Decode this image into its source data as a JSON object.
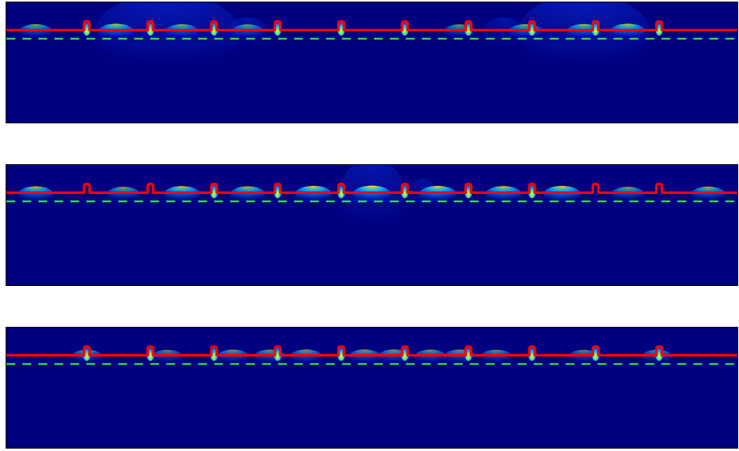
{
  "figure": {
    "colors": {
      "background_field": "#000080",
      "surface_line": "#ff0000",
      "interface_dashed": "#33ff33",
      "hotspot_core": "#ffff00",
      "field_blue": "#0040ff",
      "field_cyan": "#00c0ff",
      "field_yellow": "#ffe000"
    },
    "panels": [
      {
        "id": "mode-1",
        "ridge_count": 10,
        "ridge_positions_frac": [
          0.11,
          0.197,
          0.284,
          0.371,
          0.458,
          0.545,
          0.632,
          0.719,
          0.806,
          0.893
        ],
        "hot_ridges": [
          0,
          1,
          2,
          3,
          4,
          5,
          6,
          7,
          8,
          9
        ],
        "surface_lobes": [
          {
            "x": 0.04,
            "strength": 0.5
          },
          {
            "x": 0.15,
            "strength": 0.7
          },
          {
            "x": 0.24,
            "strength": 0.5
          },
          {
            "x": 0.33,
            "strength": 0.4
          },
          {
            "x": 0.62,
            "strength": 0.4
          },
          {
            "x": 0.71,
            "strength": 0.5
          },
          {
            "x": 0.79,
            "strength": 0.6
          },
          {
            "x": 0.85,
            "strength": 0.7
          }
        ],
        "deep_lobes": [
          {
            "x": 0.22,
            "w": 0.1,
            "h": 50,
            "strength": 0.35
          },
          {
            "x": 0.79,
            "w": 0.09,
            "h": 50,
            "strength": 0.35
          },
          {
            "x": 0.33,
            "w": 0.03,
            "h": 20,
            "strength": 0.25
          },
          {
            "x": 0.68,
            "w": 0.03,
            "h": 20,
            "strength": 0.25
          }
        ]
      },
      {
        "id": "mode-2",
        "ridge_count": 10,
        "ridge_positions_frac": [
          0.11,
          0.197,
          0.284,
          0.371,
          0.458,
          0.545,
          0.632,
          0.719,
          0.806,
          0.893
        ],
        "hot_ridges": [
          2,
          3,
          4,
          5,
          6,
          7
        ],
        "surface_lobes": [
          {
            "x": 0.04,
            "strength": 0.7
          },
          {
            "x": 0.16,
            "strength": 0.5
          },
          {
            "x": 0.24,
            "strength": 0.8
          },
          {
            "x": 0.33,
            "strength": 0.7
          },
          {
            "x": 0.42,
            "strength": 0.9
          },
          {
            "x": 0.5,
            "strength": 1.0
          },
          {
            "x": 0.59,
            "strength": 0.9
          },
          {
            "x": 0.68,
            "strength": 0.8
          },
          {
            "x": 0.76,
            "strength": 0.9
          },
          {
            "x": 0.85,
            "strength": 0.5
          },
          {
            "x": 0.96,
            "strength": 0.6
          }
        ],
        "deep_lobes": [
          {
            "x": 0.5,
            "w": 0.045,
            "h": 48,
            "strength": 0.3
          },
          {
            "x": 0.57,
            "w": 0.02,
            "h": 22,
            "strength": 0.2
          }
        ]
      },
      {
        "id": "mode-3",
        "ridge_count": 10,
        "ridge_positions_frac": [
          0.11,
          0.197,
          0.284,
          0.371,
          0.458,
          0.545,
          0.632,
          0.719,
          0.806,
          0.893
        ],
        "hot_ridges": [
          0,
          1,
          2,
          3,
          4,
          5,
          6,
          7,
          8,
          9
        ],
        "surface_lobes": [
          {
            "x": 0.11,
            "strength": 0.35
          },
          {
            "x": 0.22,
            "strength": 0.3
          },
          {
            "x": 0.31,
            "strength": 0.4
          },
          {
            "x": 0.36,
            "strength": 0.4
          },
          {
            "x": 0.41,
            "strength": 0.45
          },
          {
            "x": 0.49,
            "strength": 0.45
          },
          {
            "x": 0.53,
            "strength": 0.45
          },
          {
            "x": 0.58,
            "strength": 0.4
          },
          {
            "x": 0.62,
            "strength": 0.4
          },
          {
            "x": 0.67,
            "strength": 0.35
          },
          {
            "x": 0.79,
            "strength": 0.3
          },
          {
            "x": 0.89,
            "strength": 0.3
          }
        ],
        "deep_lobes": []
      }
    ]
  }
}
